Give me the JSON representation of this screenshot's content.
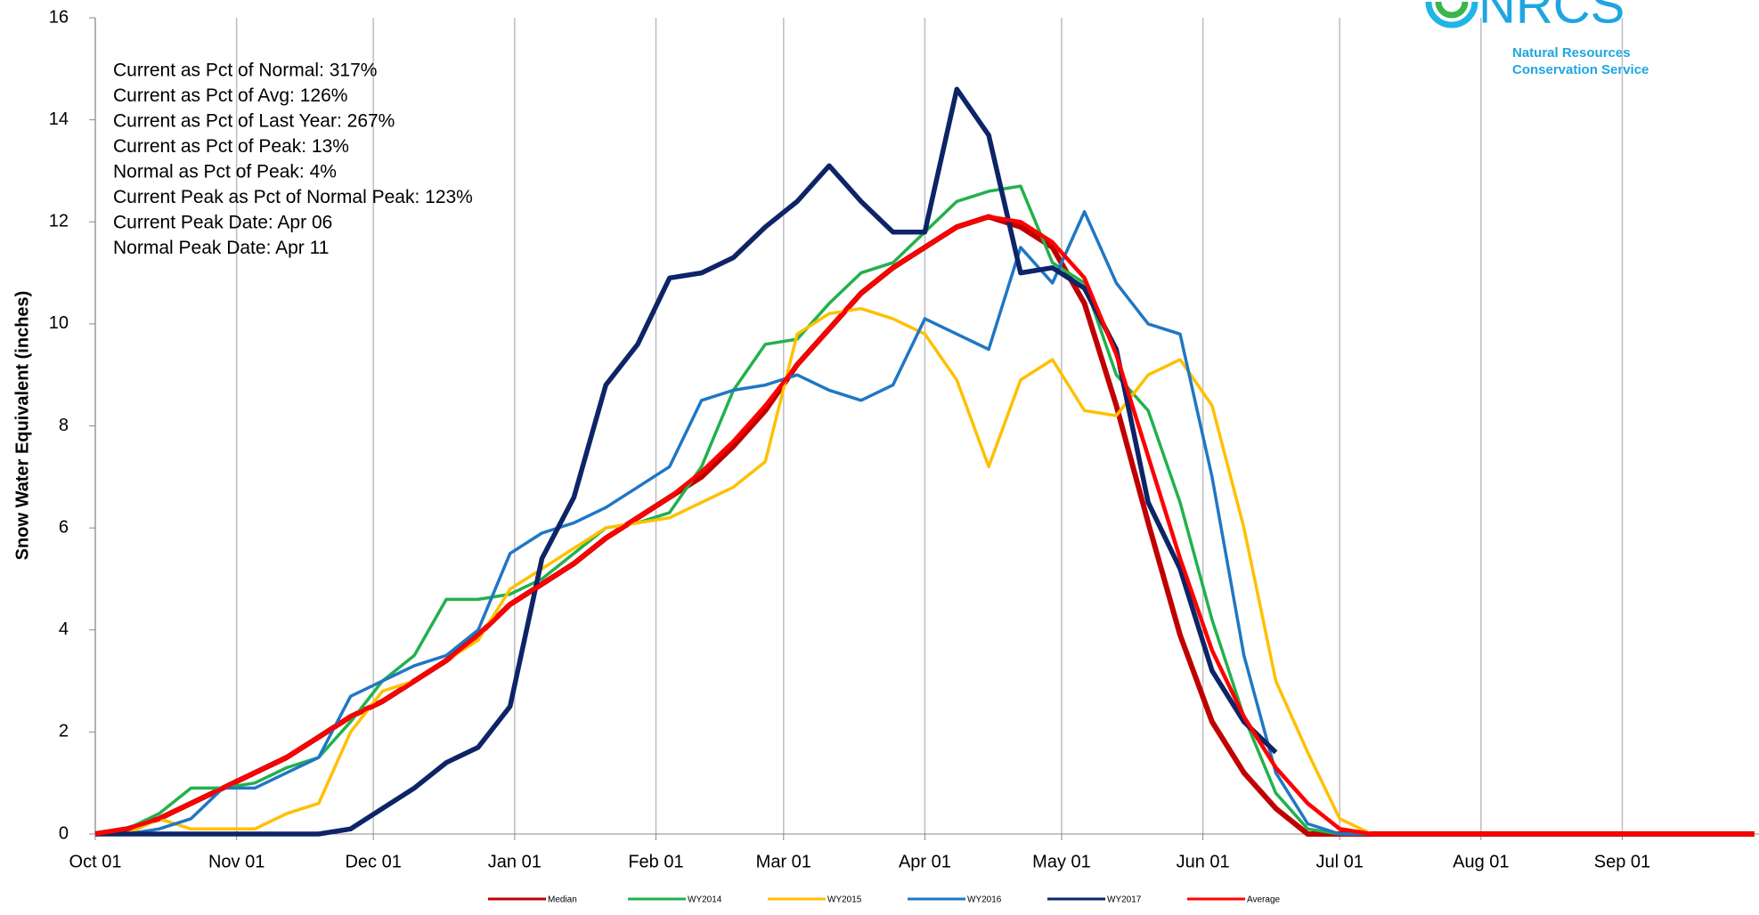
{
  "chart_data": {
    "type": "line",
    "y_label": "Snow Water Equivalent (inches)",
    "annotations": [
      "Current  as Pct of Normal: 317%",
      "Current  as Pct of Avg: 126%",
      "Current  as Pct of Last Year: 267%",
      "Current  as Pct of Peak: 13%",
      "Normal  as Pct of Peak: 4%",
      "Current  Peak as Pct of Normal Peak: 123%",
      "Current  Peak Date:  Apr 06",
      "Normal  Peak Date: Apr 11"
    ],
    "logo": {
      "name": "NRCS",
      "line1": "Natural Resources",
      "line2": "Conservation Service"
    },
    "xlim": [
      0,
      365
    ],
    "xticks": [
      {
        "value": 0,
        "label": "Oct 01"
      },
      {
        "value": 31,
        "label": "Nov 01"
      },
      {
        "value": 61,
        "label": "Dec 01"
      },
      {
        "value": 92,
        "label": "Jan 01"
      },
      {
        "value": 123,
        "label": "Feb 01"
      },
      {
        "value": 151,
        "label": "Mar 01"
      },
      {
        "value": 182,
        "label": "Apr 01"
      },
      {
        "value": 212,
        "label": "May 01"
      },
      {
        "value": 243,
        "label": "Jun 01"
      },
      {
        "value": 273,
        "label": "Jul 01"
      },
      {
        "value": 304,
        "label": "Aug 01"
      },
      {
        "value": 335,
        "label": "Sep 01"
      }
    ],
    "ylim": [
      0,
      16
    ],
    "yticks": [
      0,
      2,
      4,
      6,
      8,
      10,
      12,
      14,
      16
    ],
    "grid": "x",
    "x": [
      0,
      7,
      14,
      21,
      28,
      35,
      42,
      49,
      56,
      63,
      70,
      77,
      84,
      91,
      98,
      105,
      112,
      119,
      126,
      133,
      140,
      147,
      154,
      161,
      168,
      175,
      182,
      189,
      196,
      203,
      210,
      217,
      224,
      231,
      238,
      245,
      252,
      259,
      266,
      273,
      280,
      287,
      294,
      301,
      308,
      315,
      322,
      329,
      336,
      343,
      350,
      357,
      364
    ],
    "series": [
      {
        "name": "Median",
        "color": "#c00000",
        "values": [
          0,
          0.1,
          0.3,
          0.6,
          0.9,
          1.2,
          1.5,
          1.9,
          2.3,
          2.6,
          3.0,
          3.4,
          3.9,
          4.5,
          4.9,
          5.3,
          5.8,
          6.2,
          6.6,
          7.0,
          7.6,
          8.3,
          9.2,
          9.9,
          10.6,
          11.1,
          11.5,
          11.9,
          12.1,
          11.9,
          11.5,
          10.4,
          8.4,
          6.1,
          3.9,
          2.2,
          1.2,
          0.5,
          0,
          0,
          0,
          0,
          0,
          0,
          0,
          0,
          0,
          0,
          0,
          0,
          0,
          0,
          0
        ]
      },
      {
        "name": "WY2014",
        "color": "#22b14c",
        "values": [
          0,
          0.1,
          0.4,
          0.9,
          0.9,
          1.0,
          1.3,
          1.5,
          2.2,
          3.0,
          3.5,
          4.6,
          4.6,
          4.7,
          5.0,
          5.5,
          6.0,
          6.1,
          6.3,
          7.2,
          8.7,
          9.6,
          9.7,
          10.4,
          11.0,
          11.2,
          11.8,
          12.4,
          12.6,
          12.7,
          11.2,
          10.8,
          9.0,
          8.3,
          6.5,
          4.2,
          2.3,
          0.8,
          0.1,
          0,
          0,
          0,
          0,
          0,
          0,
          0,
          0,
          0,
          0,
          0,
          0,
          0,
          0
        ]
      },
      {
        "name": "WY2015",
        "color": "#ffc000",
        "values": [
          0,
          0,
          0.3,
          0.1,
          0.1,
          0.1,
          0.4,
          0.6,
          2.0,
          2.8,
          3.0,
          3.4,
          3.8,
          4.8,
          5.2,
          5.6,
          6.0,
          6.1,
          6.2,
          6.5,
          6.8,
          7.3,
          9.8,
          10.2,
          10.3,
          10.1,
          9.8,
          8.9,
          7.2,
          8.9,
          9.3,
          8.3,
          8.2,
          9.0,
          9.3,
          8.4,
          6.0,
          3.0,
          1.6,
          0.3,
          0,
          0,
          0,
          0,
          0,
          0,
          0,
          0,
          0,
          0,
          0,
          0,
          0
        ]
      },
      {
        "name": "WY2016",
        "color": "#1f77c4",
        "values": [
          0,
          0,
          0.1,
          0.3,
          0.9,
          0.9,
          1.2,
          1.5,
          2.7,
          3.0,
          3.3,
          3.5,
          4.0,
          5.5,
          5.9,
          6.1,
          6.4,
          6.8,
          7.2,
          8.5,
          8.7,
          8.8,
          9.0,
          8.7,
          8.5,
          8.8,
          10.1,
          9.8,
          9.5,
          11.5,
          10.8,
          12.2,
          10.8,
          10.0,
          9.8,
          7.0,
          3.5,
          1.2,
          0.2,
          0,
          0,
          0,
          0,
          0,
          0,
          0,
          0,
          0,
          0,
          0,
          0,
          0,
          0
        ]
      },
      {
        "name": "WY2017",
        "color": "#0d2467",
        "values": [
          0,
          0,
          0,
          0,
          0,
          0,
          0,
          0,
          0.1,
          0.5,
          0.9,
          1.4,
          1.7,
          2.5,
          5.4,
          6.6,
          8.8,
          9.6,
          10.9,
          11.0,
          11.3,
          11.9,
          12.4,
          13.1,
          12.4,
          11.8,
          11.8,
          14.6,
          13.7,
          11.0,
          11.1,
          10.7,
          9.5,
          6.5,
          5.2,
          3.2,
          2.2,
          1.6,
          null,
          null,
          null,
          null,
          null,
          null,
          null,
          null,
          null,
          null,
          null,
          null,
          null,
          null,
          null
        ]
      },
      {
        "name": "Average",
        "color": "#ff0000",
        "values": [
          0,
          0.1,
          0.3,
          0.6,
          0.9,
          1.2,
          1.5,
          1.9,
          2.3,
          2.6,
          3.0,
          3.4,
          3.9,
          4.5,
          4.9,
          5.3,
          5.8,
          6.2,
          6.6,
          7.1,
          7.7,
          8.4,
          9.2,
          9.9,
          10.6,
          11.1,
          11.5,
          11.9,
          12.1,
          12.0,
          11.6,
          10.9,
          9.4,
          7.4,
          5.4,
          3.6,
          2.3,
          1.3,
          0.6,
          0.1,
          0,
          0,
          0,
          0,
          0,
          0,
          0,
          0,
          0,
          0,
          0,
          0,
          0
        ]
      }
    ]
  }
}
